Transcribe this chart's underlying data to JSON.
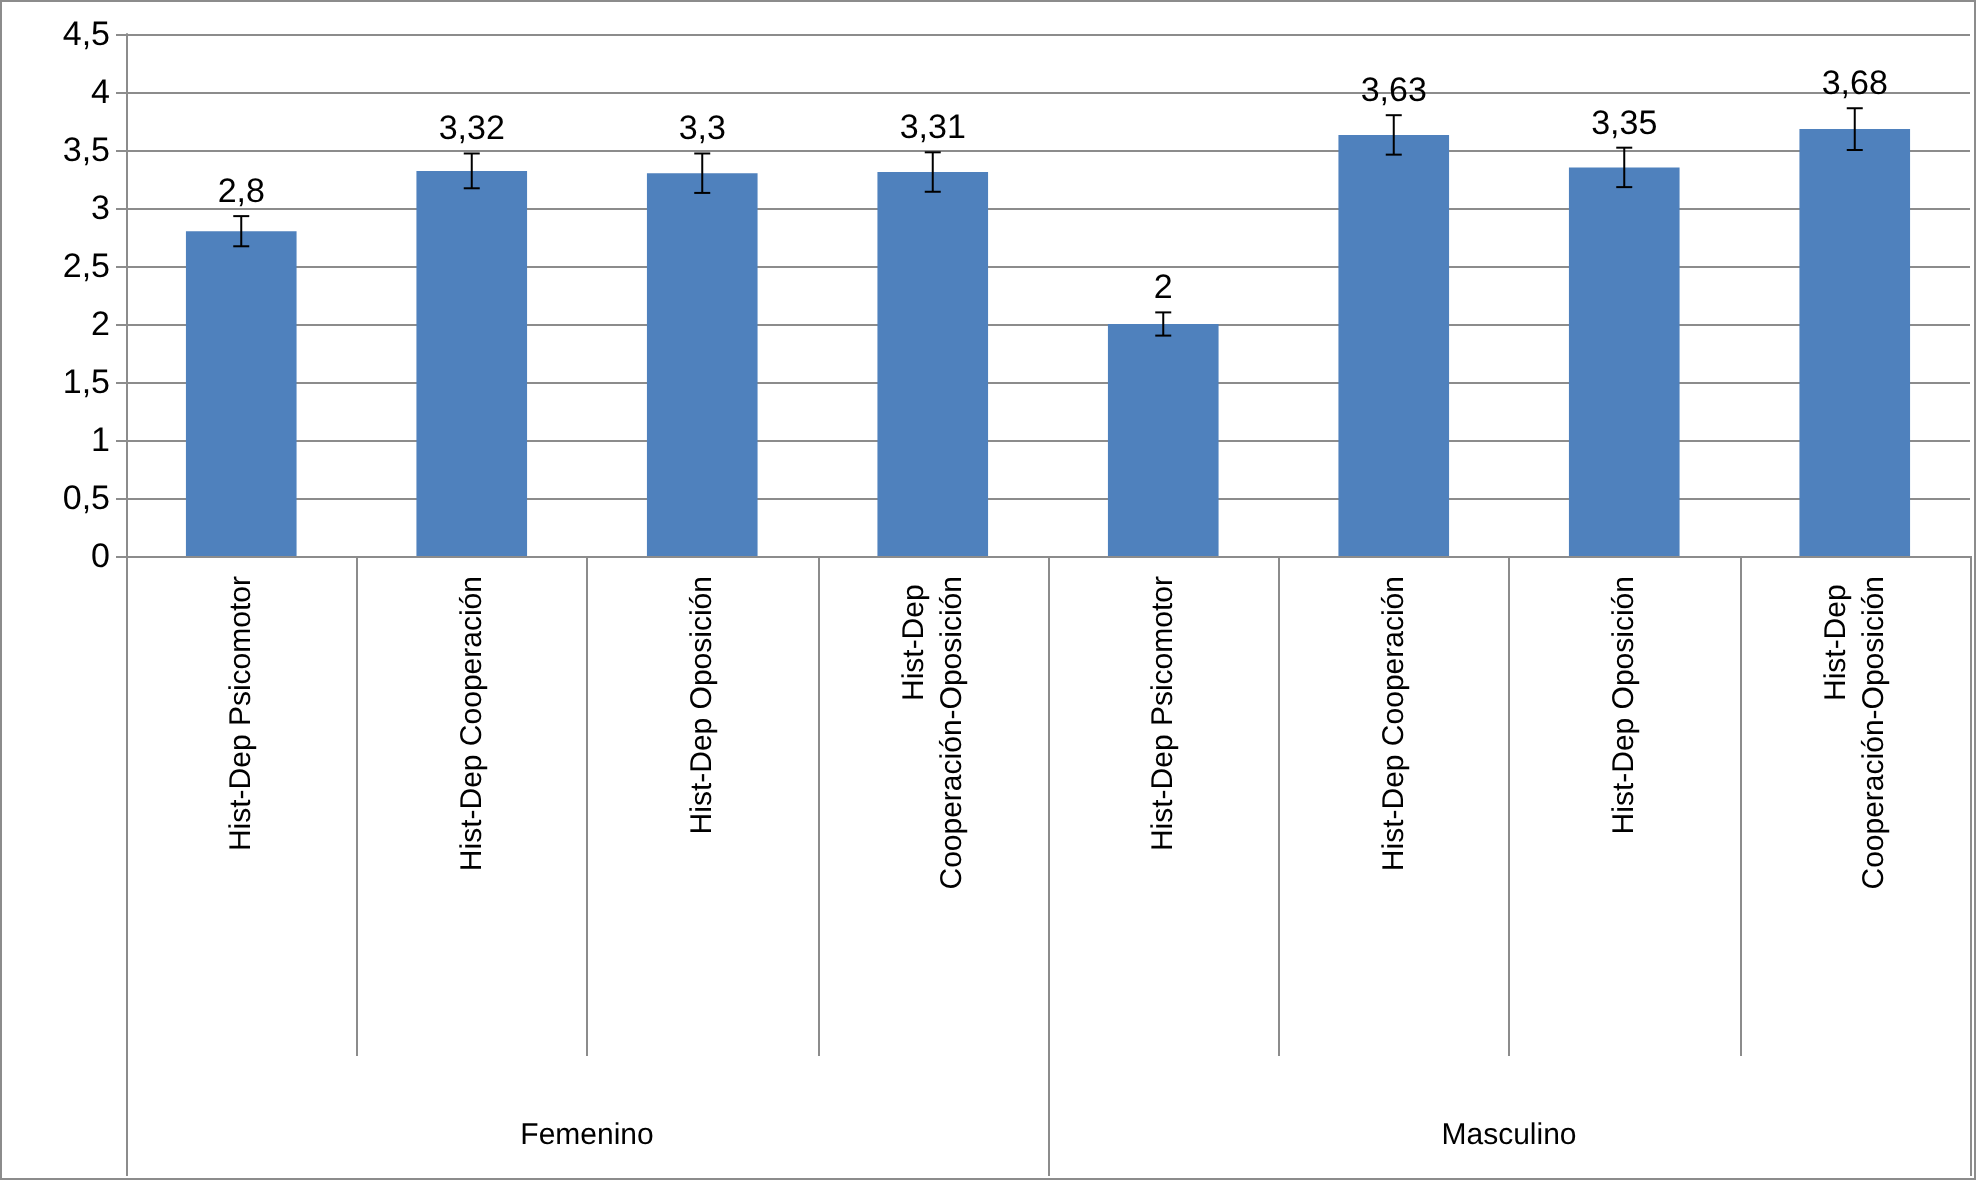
{
  "chart_data": {
    "type": "bar",
    "categories": [
      "Hist-Dep Psicomotor",
      "Hist-Dep Cooperación",
      "Hist-Dep Oposición",
      "Hist-Dep Cooperación-Oposición",
      "Hist-Dep Psicomotor",
      "Hist-Dep Cooperación",
      "Hist-Dep Oposición",
      "Hist-Dep Cooperación-Oposición"
    ],
    "values": [
      2.8,
      3.32,
      3.3,
      3.31,
      2,
      3.63,
      3.35,
      3.68
    ],
    "value_labels": [
      "2,8",
      "3,32",
      "3,3",
      "3,31",
      "2",
      "3,63",
      "3,35",
      "3,68"
    ],
    "errors": [
      0.13,
      0.15,
      0.17,
      0.17,
      0.1,
      0.17,
      0.17,
      0.18
    ],
    "color": "#4f81bd",
    "ylim": [
      0,
      4.5
    ],
    "yticks": [
      0,
      {
        "value": 0.5,
        "label": "0,5"
      },
      1,
      {
        "value": 1.5,
        "label": "1,5"
      },
      2,
      {
        "value": 2.5,
        "label": "2,5"
      },
      3,
      {
        "value": 3.5,
        "label": "3,5"
      },
      4,
      {
        "value": 4.5,
        "label": "4,5"
      }
    ],
    "grid": "y",
    "annotations": [
      "Femenino",
      "Masculino"
    ]
  }
}
